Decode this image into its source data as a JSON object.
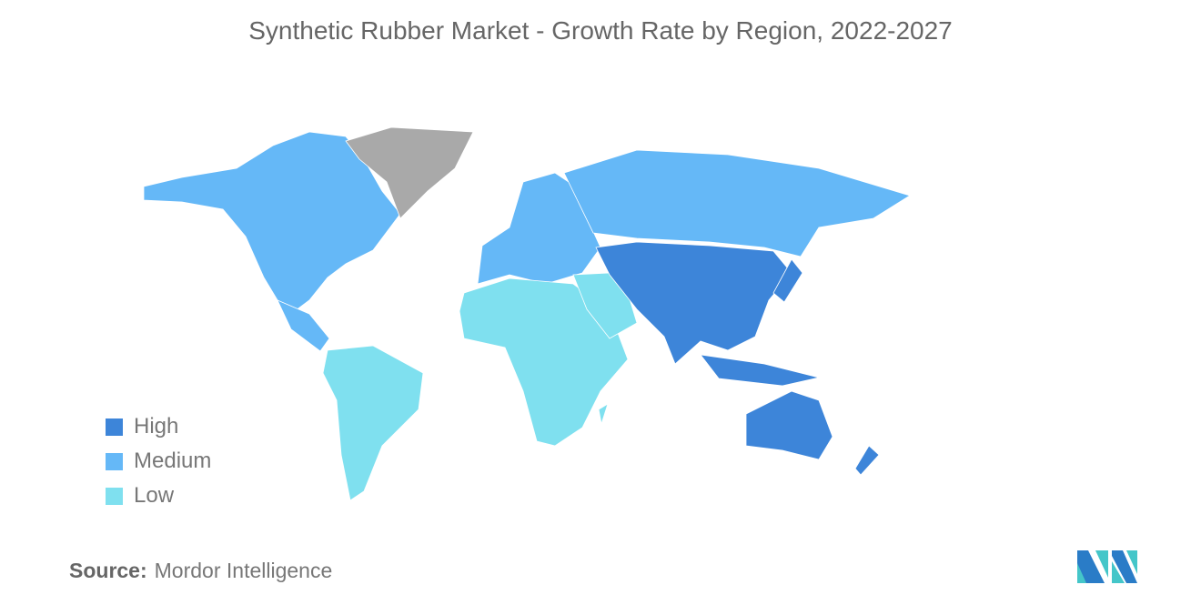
{
  "title": "Synthetic Rubber Market - Growth Rate by Region, 2022-2027",
  "legend": [
    {
      "label": "High",
      "color": "#3d85d9"
    },
    {
      "label": "Medium",
      "color": "#65b8f7"
    },
    {
      "label": "Low",
      "color": "#7fe0ef"
    }
  ],
  "no_data_color": "#a9a9a9",
  "regions": {
    "north_america": "Medium",
    "europe": "Medium",
    "russia": "Medium",
    "asia_pacific": "High",
    "south_america": "Low",
    "africa": "Low",
    "middle_east": "Low",
    "greenland": "No data"
  },
  "source": {
    "label": "Source:",
    "value": "Mordor Intelligence"
  },
  "logo": "Mordor Intelligence logo"
}
